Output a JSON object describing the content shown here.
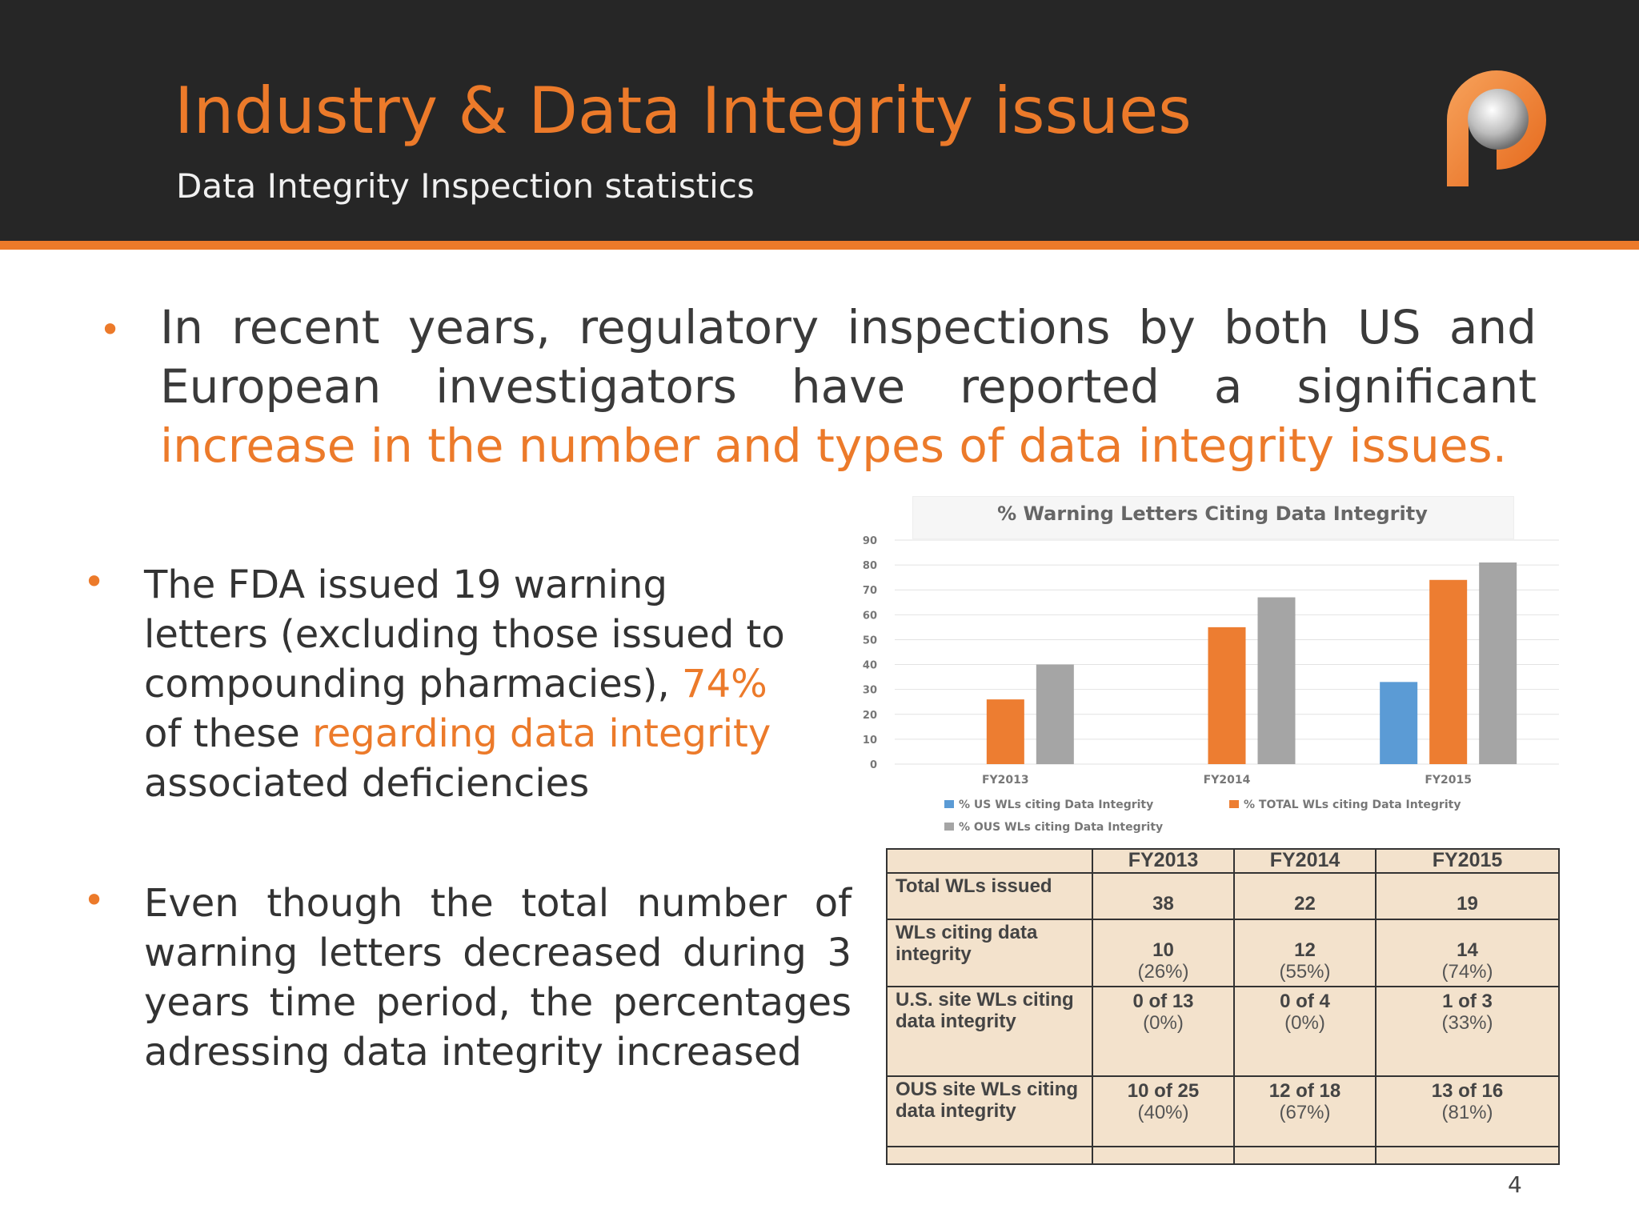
{
  "header": {
    "title": "Industry & Data Integrity issues",
    "subtitle": "Data Integrity Inspection statistics",
    "logo_icon": "p-logo-icon"
  },
  "bullets": {
    "main_prefix": "In recent years, regulatory inspections by both US and European investigators have reported a significant ",
    "main_highlight": "increase in the number and types of data integrity issues.",
    "fda_part1": "The FDA issued 19 warning letters (excluding those issued to compounding pharmacies), ",
    "fda_highlight1": "74%",
    "fda_part2": " of these ",
    "fda_highlight2": "regarding data integrity",
    "fda_part3": " associated deficiencies",
    "trend": "Even though the total number of warning letters decreased during 3 years time period, the percentages adressing data integrity increased"
  },
  "chart_data": {
    "type": "bar",
    "title": "% Warning Letters Citing Data Integrity",
    "categories": [
      "FY2013",
      "FY2014",
      "FY2015"
    ],
    "series": [
      {
        "name": "% US WLs citing Data Integrity",
        "color": "#5b9bd5",
        "values": [
          0,
          0,
          33
        ]
      },
      {
        "name": "% TOTAL WLs citing Data Integrity",
        "color": "#ed7d31",
        "values": [
          26,
          55,
          74
        ]
      },
      {
        "name": "% OUS WLs citing Data Integrity",
        "color": "#a5a5a5",
        "values": [
          40,
          67,
          81
        ]
      }
    ],
    "ylim": [
      0,
      90
    ],
    "yticks": [
      0,
      10,
      20,
      30,
      40,
      50,
      60,
      70,
      80,
      90
    ],
    "grid": true,
    "legend": "bottom"
  },
  "table": {
    "headers": [
      "",
      "FY2013",
      "FY2014",
      "FY2015"
    ],
    "rows": [
      {
        "label": "Total WLs issued",
        "cells": [
          {
            "main": "38",
            "sub": ""
          },
          {
            "main": "22",
            "sub": ""
          },
          {
            "main": "19",
            "sub": ""
          }
        ]
      },
      {
        "label": "WLs citing data integrity",
        "cells": [
          {
            "main": "10",
            "sub": "(26%)"
          },
          {
            "main": "12",
            "sub": "(55%)"
          },
          {
            "main": "14",
            "sub": "(74%)"
          }
        ]
      },
      {
        "label": "U.S. site WLs citing data integrity",
        "cells": [
          {
            "main": "0 of 13",
            "sub": "(0%)"
          },
          {
            "main": "0 of 4",
            "sub": "(0%)"
          },
          {
            "main": "1 of 3",
            "sub": "(33%)"
          }
        ]
      },
      {
        "label": "OUS site WLs citing data integrity",
        "cells": [
          {
            "main": "10 of 25",
            "sub": "(40%)"
          },
          {
            "main": "12 of 18",
            "sub": "(67%)"
          },
          {
            "main": "13 of 16",
            "sub": "(81%)"
          }
        ]
      }
    ]
  },
  "page_number": "4"
}
